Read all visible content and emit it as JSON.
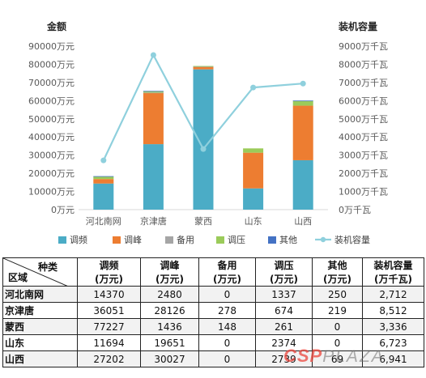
{
  "chart_data": {
    "type": "bar",
    "stacked": true,
    "categories": [
      "河北南网",
      "京津唐",
      "蒙西",
      "山东",
      "山西"
    ],
    "y_left_title": "金额",
    "y_right_title": "装机容量",
    "y_left_ticks": [
      "0万元",
      "10000万元",
      "20000万元",
      "30000万元",
      "40000万元",
      "50000万元",
      "60000万元",
      "70000万元",
      "80000万元",
      "90000万元"
    ],
    "y_right_ticks": [
      "0万千瓦",
      "1000万千瓦",
      "2000万千瓦",
      "3000万千瓦",
      "4000万千瓦",
      "5000万千瓦",
      "6000万千瓦",
      "7000万千瓦",
      "8000万千瓦",
      "9000万千瓦"
    ],
    "ylim_left": [
      0,
      90000
    ],
    "ylim_right": [
      0,
      9000
    ],
    "series": [
      {
        "name": "调频",
        "color": "#4bacc6",
        "values": [
          14370,
          36051,
          77227,
          11694,
          27202
        ]
      },
      {
        "name": "调峰",
        "color": "#ed7d31",
        "values": [
          2480,
          28126,
          1436,
          19651,
          30027
        ]
      },
      {
        "name": "备用",
        "color": "#a5a5a5",
        "values": [
          0,
          278,
          148,
          0,
          0
        ]
      },
      {
        "name": "调压",
        "color": "#9bcb5a",
        "values": [
          1337,
          674,
          261,
          2374,
          2739
        ]
      },
      {
        "name": "其他",
        "color": "#4472c4",
        "values": [
          250,
          219,
          0,
          0,
          69
        ]
      }
    ],
    "line_series": {
      "name": "装机容量",
      "color": "#8fd0dd",
      "axis": "right",
      "values": [
        2712,
        8512,
        3336,
        6723,
        6941
      ]
    },
    "grid": false,
    "legend_position": "bottom"
  },
  "table": {
    "corner_top": "种类",
    "corner_bottom": "区域",
    "headers": [
      {
        "line1": "调频",
        "line2": "(万元)"
      },
      {
        "line1": "调峰",
        "line2": "(万元)"
      },
      {
        "line1": "备用",
        "line2": "(万元)"
      },
      {
        "line1": "调压",
        "line2": "(万元)"
      },
      {
        "line1": "其他",
        "line2": "(万元)"
      },
      {
        "line1": "装机容量",
        "line2": "(万千瓦)"
      }
    ],
    "rows": [
      {
        "region": "河北南网",
        "cells": [
          "14370",
          "2480",
          "0",
          "1337",
          "250",
          "2,712"
        ]
      },
      {
        "region": "京津唐",
        "cells": [
          "36051",
          "28126",
          "278",
          "674",
          "219",
          "8,512"
        ]
      },
      {
        "region": "蒙西",
        "cells": [
          "77227",
          "1436",
          "148",
          "261",
          "0",
          "3,336"
        ]
      },
      {
        "region": "山东",
        "cells": [
          "11694",
          "19651",
          "0",
          "2374",
          "0",
          "6,723"
        ]
      },
      {
        "region": "山西",
        "cells": [
          "27202",
          "30027",
          "0",
          "2739",
          "69",
          "6,941"
        ]
      }
    ]
  },
  "watermark": {
    "part1": "CSP",
    "part2": "PLAZA"
  }
}
